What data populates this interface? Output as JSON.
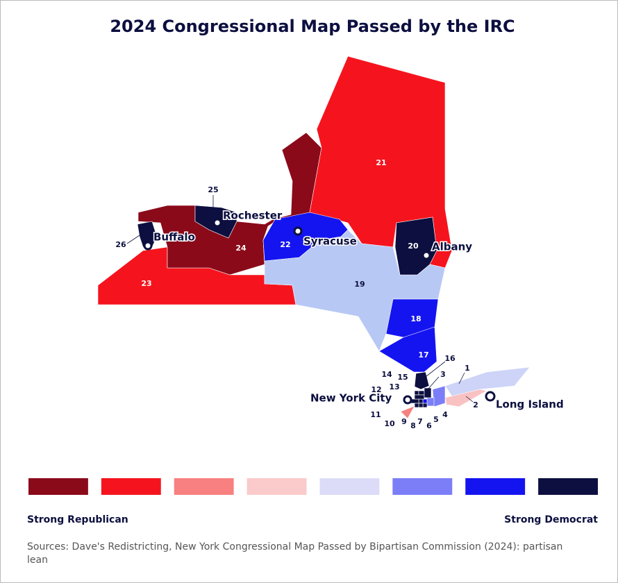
{
  "title": "2024 Congressional Map Passed by the IRC",
  "districts": [
    {
      "label": "1",
      "color": "#cdd4f8"
    },
    {
      "label": "2",
      "color": "#f9c2c2"
    },
    {
      "label": "3",
      "color": "#7b7ef7"
    },
    {
      "label": "4",
      "color": "#7b7ef7"
    },
    {
      "label": "5",
      "color": "#0c0f3f"
    },
    {
      "label": "6",
      "color": "#1414f0"
    },
    {
      "label": "7",
      "color": "#0c0f3f"
    },
    {
      "label": "8",
      "color": "#0c0f3f"
    },
    {
      "label": "9",
      "color": "#0c0f3f"
    },
    {
      "label": "10",
      "color": "#0c0f3f"
    },
    {
      "label": "11",
      "color": "#f88080"
    },
    {
      "label": "12",
      "color": "#0c0f3f"
    },
    {
      "label": "13",
      "color": "#0c0f3f"
    },
    {
      "label": "14",
      "color": "#0c0f3f"
    },
    {
      "label": "15",
      "color": "#0c0f3f"
    },
    {
      "label": "16",
      "color": "#0c0f3f"
    },
    {
      "label": "17",
      "color": "#1414f0"
    },
    {
      "label": "18",
      "color": "#1414f0"
    },
    {
      "label": "19",
      "color": "#b8c8f5"
    },
    {
      "label": "20",
      "color": "#0c0f3f"
    },
    {
      "label": "21",
      "color": "#f5141e"
    },
    {
      "label": "22",
      "color": "#1414f0"
    },
    {
      "label": "23",
      "color": "#f5141e"
    },
    {
      "label": "24",
      "color": "#8b0a1a"
    },
    {
      "label": "25",
      "color": "#0c0f3f"
    },
    {
      "label": "26",
      "color": "#0c0f3f"
    }
  ],
  "cities": [
    "Buffalo",
    "Rochester",
    "Syracuse",
    "Albany",
    "New York City",
    "Long Island"
  ],
  "legend": {
    "colors": [
      "#8b0a1a",
      "#f5141e",
      "#f88080",
      "#fbcaca",
      "#dcdcf8",
      "#7b7ef7",
      "#1414f0",
      "#0c0f3f"
    ],
    "left_label": "Strong Republican",
    "right_label": "Strong Democrat"
  },
  "source": "Sources: Dave's Redistricting, New York Congressional Map Passed by Bipartisan Commission (2024): partisan lean"
}
